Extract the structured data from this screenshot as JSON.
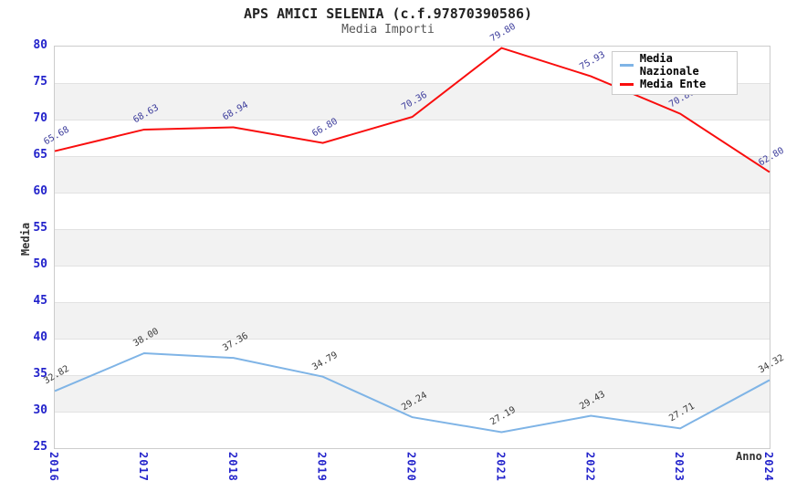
{
  "chart_data": {
    "type": "line",
    "title": "APS AMICI SELENIA (c.f.97870390586)",
    "subtitle": "Media Importi",
    "xlabel": "Anno",
    "ylabel": "Media",
    "categories": [
      "2016",
      "2017",
      "2018",
      "2019",
      "2020",
      "2021",
      "2022",
      "2023",
      "2024"
    ],
    "series": [
      {
        "name": "Media Nazionale",
        "color": "#7FB4E6",
        "label_color": "#3A3A3A",
        "values": [
          32.82,
          38.0,
          37.36,
          34.79,
          29.24,
          27.19,
          29.43,
          27.71,
          34.32
        ]
      },
      {
        "name": "Media Ente",
        "color": "#F90D0D",
        "label_color": "#3B3B9B",
        "values": [
          65.68,
          68.63,
          68.94,
          66.8,
          70.36,
          79.8,
          75.93,
          70.8,
          62.8
        ]
      }
    ],
    "ylim": [
      25,
      80
    ],
    "ytick_step": 5,
    "yticks": [
      25,
      30,
      35,
      40,
      45,
      50,
      55,
      60,
      65,
      70,
      75,
      80
    ],
    "grid": "alternating-horizontal-bands",
    "legend_position": "top-right",
    "point_label_format": "two-decimals"
  },
  "colors": {
    "axis-tick": "#2323CB",
    "band": "#F2F2F2",
    "band-line": "#E2E2E2",
    "plot-border": "#CCCCCC",
    "title": "#222222",
    "subtitle": "#555555",
    "axis-title": "#333333"
  }
}
